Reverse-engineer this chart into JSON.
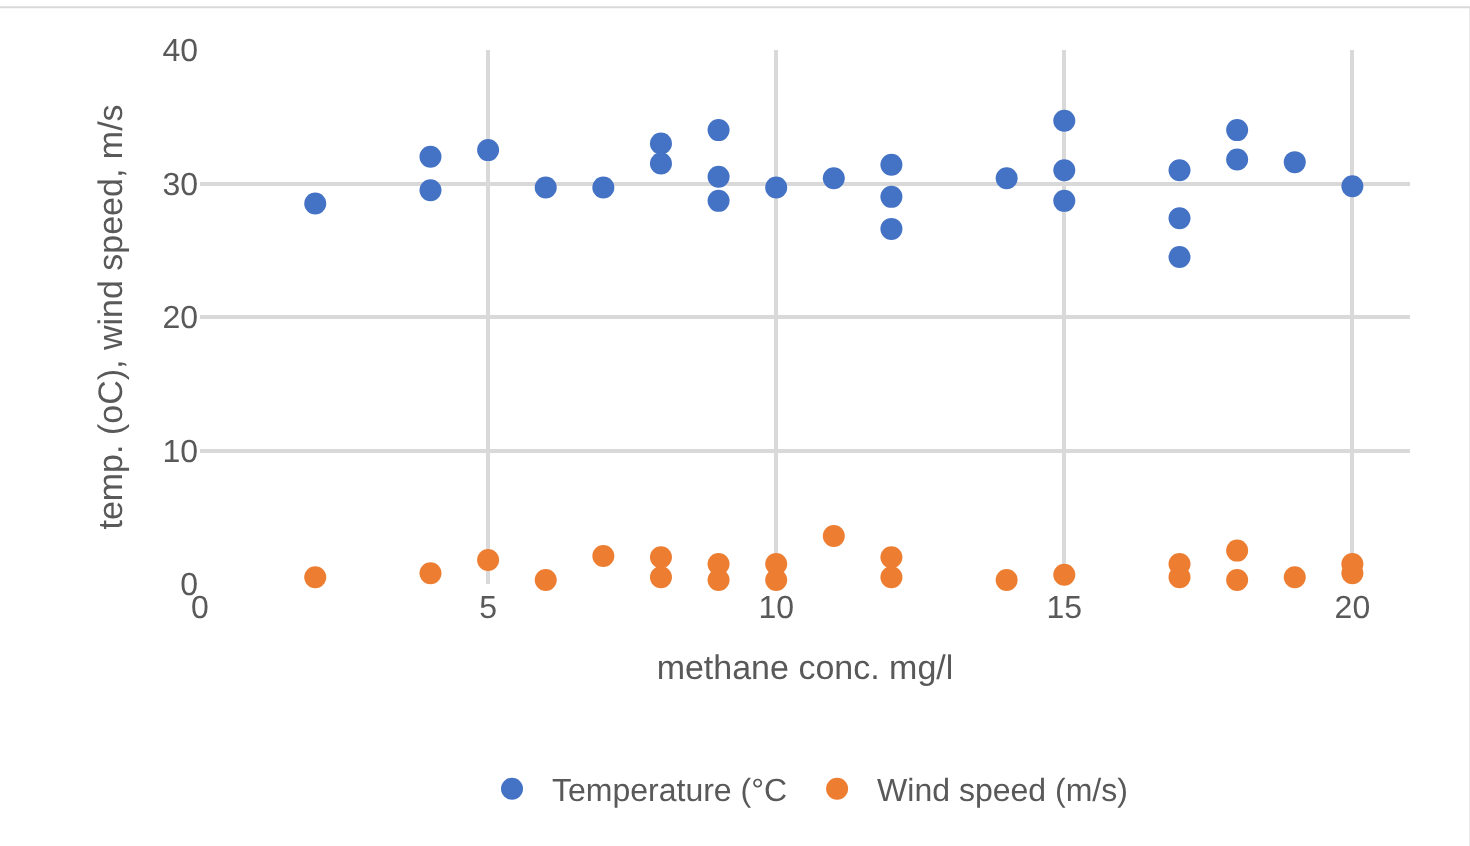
{
  "chart_data": {
    "type": "scatter",
    "xlabel": "methane conc. mg/l",
    "ylabel": "temp. (oC), wind speed, m/s",
    "xlim": [
      0,
      21
    ],
    "xticks": [
      0,
      5,
      10,
      15,
      20
    ],
    "ylim": [
      0,
      40
    ],
    "yticks": [
      0,
      10,
      20,
      30,
      40
    ],
    "grid": true,
    "legend": "bottom",
    "marker": "circle",
    "series": [
      {
        "name": "Temperature (°C",
        "color": "#4472c4",
        "x": [
          2,
          4,
          4,
          5,
          6,
          7,
          8,
          8,
          9,
          9,
          9,
          10,
          11,
          12,
          12,
          12,
          14,
          15,
          15,
          15,
          17,
          17,
          17,
          18,
          18,
          19,
          20
        ],
        "values": [
          28.5,
          32,
          29.5,
          32.5,
          29.7,
          29.7,
          33,
          31.5,
          34,
          30.5,
          28.7,
          29.7,
          30.4,
          31.4,
          29,
          26.6,
          30.4,
          34.7,
          31,
          28.7,
          31,
          27.4,
          24.5,
          34,
          31.8,
          31.6,
          29.8
        ]
      },
      {
        "name": "Wind speed (m/s)",
        "color": "#ed7d31",
        "x": [
          2,
          4,
          5,
          6,
          7,
          8,
          8,
          9,
          9,
          10,
          10,
          11,
          12,
          12,
          14,
          15,
          17,
          17,
          18,
          18,
          19,
          20,
          20
        ],
        "values": [
          0.5,
          0.8,
          1.8,
          0.3,
          2.1,
          2,
          0.5,
          1.5,
          0.3,
          1.5,
          0.3,
          3.6,
          2,
          0.5,
          0.3,
          0.7,
          1.5,
          0.5,
          2.5,
          0.3,
          0.5,
          1.5,
          0.8
        ]
      }
    ]
  }
}
